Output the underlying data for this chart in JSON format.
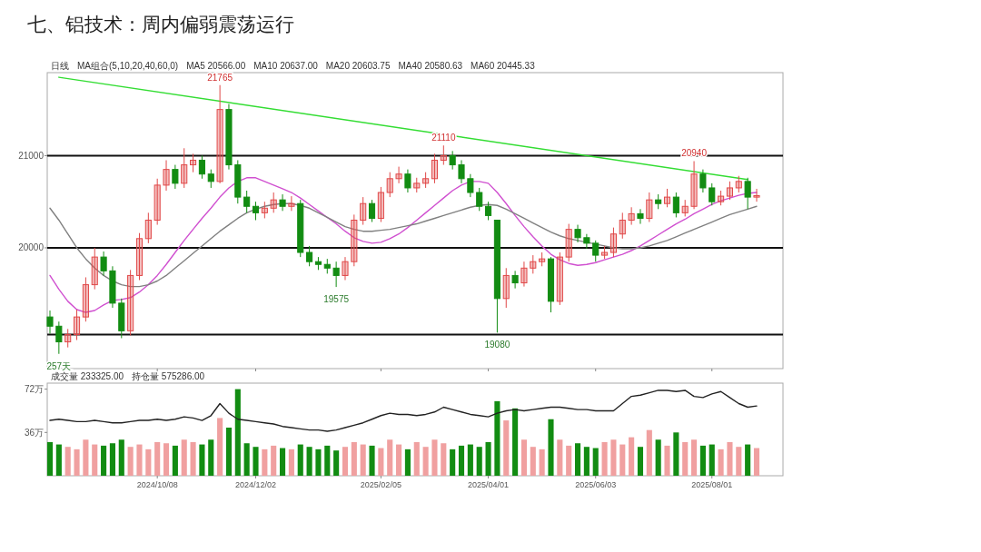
{
  "chart_data": [
    {
      "type": "candlestick",
      "title": "七、铝技术：周内偏弱震荡运行",
      "categories": [
        null,
        null,
        null,
        null,
        null,
        null,
        null,
        null,
        null,
        null,
        null,
        null,
        "2024/10/08",
        null,
        null,
        null,
        null,
        null,
        null,
        null,
        null,
        null,
        null,
        "2024/12/02",
        null,
        null,
        null,
        null,
        null,
        null,
        null,
        null,
        null,
        null,
        null,
        null,
        null,
        "2025/02/05",
        null,
        null,
        null,
        null,
        null,
        null,
        null,
        null,
        null,
        null,
        null,
        "2025/04/01",
        null,
        null,
        null,
        null,
        null,
        null,
        null,
        null,
        null,
        null,
        null,
        "2025/06/03",
        null,
        null,
        null,
        null,
        null,
        null,
        null,
        null,
        null,
        null,
        null,
        null,
        "2025/08/01",
        null,
        null,
        null,
        null,
        null
      ],
      "ohlc": [
        [
          19250,
          19320,
          19070,
          19150
        ],
        [
          19150,
          19200,
          18850,
          18980
        ],
        [
          18980,
          19120,
          18920,
          19060
        ],
        [
          19060,
          19330,
          19000,
          19250
        ],
        [
          19250,
          19680,
          19200,
          19600
        ],
        [
          19600,
          20000,
          19550,
          19900
        ],
        [
          19900,
          19960,
          19700,
          19750
        ],
        [
          19750,
          19800,
          19350,
          19400
        ],
        [
          19400,
          19450,
          19020,
          19100
        ],
        [
          19100,
          19760,
          19050,
          19700
        ],
        [
          19700,
          20160,
          19650,
          20100
        ],
        [
          20100,
          20380,
          20050,
          20300
        ],
        [
          20300,
          20750,
          20250,
          20680
        ],
        [
          20680,
          20950,
          20620,
          20850
        ],
        [
          20850,
          20900,
          20640,
          20700
        ],
        [
          20700,
          21080,
          20650,
          20900
        ],
        [
          20900,
          21020,
          20820,
          20950
        ],
        [
          20950,
          21000,
          20750,
          20800
        ],
        [
          20800,
          20850,
          20650,
          20720
        ],
        [
          20720,
          21765,
          20700,
          21500
        ],
        [
          21500,
          21560,
          20850,
          20900
        ],
        [
          20900,
          20950,
          20480,
          20550
        ],
        [
          20550,
          20620,
          20380,
          20450
        ],
        [
          20450,
          20500,
          20300,
          20380
        ],
        [
          20380,
          20500,
          20320,
          20430
        ],
        [
          20430,
          20600,
          20380,
          20520
        ],
        [
          20520,
          20580,
          20400,
          20450
        ],
        [
          20450,
          20560,
          20400,
          20480
        ],
        [
          20480,
          20520,
          19900,
          19950
        ],
        [
          19950,
          20020,
          19800,
          19850
        ],
        [
          19850,
          19900,
          19760,
          19820
        ],
        [
          19820,
          19880,
          19720,
          19780
        ],
        [
          19780,
          19850,
          19575,
          19700
        ],
        [
          19700,
          19900,
          19650,
          19850
        ],
        [
          19850,
          20360,
          19800,
          20300
        ],
        [
          20300,
          20550,
          20250,
          20480
        ],
        [
          20480,
          20520,
          20280,
          20320
        ],
        [
          20320,
          20660,
          20280,
          20600
        ],
        [
          20600,
          20820,
          20550,
          20750
        ],
        [
          20750,
          20880,
          20700,
          20800
        ],
        [
          20800,
          20850,
          20600,
          20650
        ],
        [
          20650,
          20760,
          20600,
          20700
        ],
        [
          20700,
          20820,
          20650,
          20750
        ],
        [
          20750,
          21020,
          20700,
          20950
        ],
        [
          20950,
          21110,
          20900,
          21000
        ],
        [
          21000,
          21050,
          20850,
          20900
        ],
        [
          20900,
          20950,
          20700,
          20750
        ],
        [
          20750,
          20800,
          20550,
          20600
        ],
        [
          20600,
          20650,
          20400,
          20450
        ],
        [
          20450,
          20500,
          20300,
          20350
        ],
        [
          20300,
          20300,
          19080,
          19450
        ],
        [
          19450,
          19780,
          19350,
          19700
        ],
        [
          19700,
          19750,
          19560,
          19620
        ],
        [
          19620,
          19850,
          19580,
          19780
        ],
        [
          19780,
          19920,
          19720,
          19850
        ],
        [
          19850,
          19950,
          19800,
          19880
        ],
        [
          19880,
          19900,
          19300,
          19420
        ],
        [
          19420,
          19950,
          19380,
          19900
        ],
        [
          19900,
          20260,
          19850,
          20200
        ],
        [
          20200,
          20250,
          20060,
          20110
        ],
        [
          20110,
          20150,
          19990,
          20050
        ],
        [
          20050,
          20080,
          19850,
          19920
        ],
        [
          19920,
          20020,
          19880,
          19950
        ],
        [
          19950,
          20220,
          19900,
          20150
        ],
        [
          20150,
          20380,
          20100,
          20300
        ],
        [
          20300,
          20440,
          20250,
          20370
        ],
        [
          20370,
          20420,
          20260,
          20320
        ],
        [
          20320,
          20600,
          20280,
          20520
        ],
        [
          20520,
          20580,
          20420,
          20480
        ],
        [
          20480,
          20640,
          20440,
          20550
        ],
        [
          20550,
          20600,
          20330,
          20380
        ],
        [
          20380,
          20520,
          20340,
          20450
        ],
        [
          20450,
          20940,
          20420,
          20800
        ],
        [
          20800,
          20850,
          20600,
          20650
        ],
        [
          20650,
          20700,
          20460,
          20500
        ],
        [
          20500,
          20620,
          20460,
          20560
        ],
        [
          20560,
          20720,
          20520,
          20650
        ],
        [
          20650,
          20780,
          20600,
          20720
        ],
        [
          20720,
          20760,
          20420,
          20550
        ],
        [
          20550,
          20640,
          20500,
          20566
        ]
      ],
      "colors": [
        "#128c12",
        "#128c12",
        "#e04848",
        "#e04848",
        "#e04848",
        "#e04848",
        "#128c12",
        "#128c12",
        "#128c12",
        "#e04848",
        "#e04848",
        "#e04848",
        "#e04848",
        "#e04848",
        "#128c12",
        "#e04848",
        "#e04848",
        "#128c12",
        "#128c12",
        "#e04848",
        "#128c12",
        "#128c12",
        "#128c12",
        "#128c12",
        "#e04848",
        "#e04848",
        "#128c12",
        "#e04848",
        "#128c12",
        "#128c12",
        "#128c12",
        "#128c12",
        "#128c12",
        "#e04848",
        "#e04848",
        "#e04848",
        "#128c12",
        "#e04848",
        "#e04848",
        "#e04848",
        "#128c12",
        "#e04848",
        "#e04848",
        "#e04848",
        "#e04848",
        "#128c12",
        "#128c12",
        "#128c12",
        "#128c12",
        "#128c12",
        "#128c12",
        "#e04848",
        "#128c12",
        "#e04848",
        "#e04848",
        "#e04848",
        "#128c12",
        "#e04848",
        "#e04848",
        "#128c12",
        "#128c12",
        "#128c12",
        "#e04848",
        "#e04848",
        "#e04848",
        "#e04848",
        "#128c12",
        "#e04848",
        "#128c12",
        "#e04848",
        "#128c12",
        "#e04848",
        "#e04848",
        "#128c12",
        "#128c12",
        "#e04848",
        "#e04848",
        "#e04848",
        "#128c12",
        "#e04848"
      ],
      "ylim": [
        18690,
        21900
      ],
      "yticks": [
        20000,
        21000
      ],
      "tick_labels": "y",
      "ref_lines": [
        {
          "axis": "y",
          "value": 21000,
          "color": "#111111"
        },
        {
          "axis": "y",
          "value": 20000,
          "color": "#111111"
        },
        {
          "axis": "y",
          "value": 19060,
          "color": "#111111"
        }
      ],
      "series": [
        {
          "type": "line",
          "color": "#d050d0",
          "values": [
            19700,
            19550,
            19420,
            19330,
            19300,
            19320,
            19380,
            19430,
            19440,
            19460,
            19520,
            19600,
            19700,
            19820,
            19950,
            20080,
            20200,
            20320,
            20430,
            20550,
            20650,
            20720,
            20760,
            20760,
            20720,
            20680,
            20640,
            20600,
            20540,
            20470,
            20400,
            20330,
            20260,
            20180,
            20110,
            20070,
            20050,
            20060,
            20100,
            20150,
            20220,
            20300,
            20380,
            20460,
            20540,
            20620,
            20680,
            20720,
            20720,
            20700,
            20600,
            20480,
            20350,
            20230,
            20120,
            20020,
            19930,
            19870,
            19830,
            19810,
            19820,
            19840,
            19870,
            19900,
            19930,
            19970,
            20020,
            20080,
            20140,
            20200,
            20260,
            20310,
            20370,
            20420,
            20470,
            20510,
            20540,
            20570,
            20590,
            20600
          ]
        },
        {
          "type": "line",
          "color": "#808080",
          "values": [
            20430,
            20300,
            20150,
            20000,
            19880,
            19780,
            19700,
            19640,
            19600,
            19580,
            19580,
            19600,
            19640,
            19700,
            19780,
            19860,
            19940,
            20020,
            20100,
            20180,
            20250,
            20320,
            20380,
            20420,
            20450,
            20470,
            20480,
            20480,
            20460,
            20430,
            20380,
            20330,
            20280,
            20230,
            20200,
            20180,
            20180,
            20190,
            20200,
            20220,
            20240,
            20260,
            20290,
            20320,
            20350,
            20380,
            20410,
            20440,
            20460,
            20470,
            20460,
            20420,
            20370,
            20320,
            20270,
            20220,
            20170,
            20130,
            20100,
            20080,
            20060,
            20040,
            20020,
            20000,
            19990,
            19990,
            20000,
            20020,
            20050,
            20080,
            20120,
            20160,
            20200,
            20240,
            20280,
            20320,
            20360,
            20390,
            20420,
            20450
          ]
        },
        {
          "type": "line",
          "color": "#33dd33",
          "values": [
            null,
            21850,
            null,
            null,
            null,
            null,
            null,
            null,
            null,
            null,
            null,
            null,
            null,
            null,
            null,
            null,
            null,
            null,
            null,
            null,
            null,
            null,
            null,
            null,
            null,
            null,
            null,
            null,
            null,
            null,
            null,
            null,
            null,
            null,
            null,
            null,
            null,
            null,
            null,
            null,
            null,
            null,
            null,
            null,
            null,
            null,
            null,
            null,
            null,
            null,
            null,
            null,
            null,
            null,
            null,
            null,
            null,
            null,
            null,
            null,
            null,
            null,
            null,
            null,
            null,
            null,
            null,
            null,
            null,
            null,
            null,
            null,
            null,
            null,
            null,
            null,
            null,
            null,
            20740,
            null
          ]
        }
      ],
      "annotations": [
        "日线",
        "MA组合(5,10,20,40,60,0)",
        "MA5 20566.00",
        "MA10 20637.00",
        "MA20 20603.75",
        "MA40 20580.63",
        "MA60 20445.33",
        {
          "text": "21765",
          "y": 21765
        },
        {
          "text": "21110",
          "y": 21110
        },
        {
          "text": "20940",
          "y": 20940
        },
        {
          "text": "19575",
          "y": 19575
        },
        {
          "text": "19080",
          "y": 19080
        },
        {
          "text": "257天",
          "y": 18850
        }
      ]
    },
    {
      "type": "bar",
      "categories": [
        null,
        null,
        null,
        null,
        null,
        null,
        null,
        null,
        null,
        null,
        null,
        null,
        "2024/10/08",
        null,
        null,
        null,
        null,
        null,
        null,
        null,
        null,
        null,
        null,
        "2024/12/02",
        null,
        null,
        null,
        null,
        null,
        null,
        null,
        null,
        null,
        null,
        null,
        null,
        null,
        "2025/02/05",
        null,
        null,
        null,
        null,
        null,
        null,
        null,
        null,
        null,
        null,
        null,
        "2025/04/01",
        null,
        null,
        null,
        null,
        null,
        null,
        null,
        null,
        null,
        null,
        null,
        "2025/06/03",
        null,
        null,
        null,
        null,
        null,
        null,
        null,
        null,
        null,
        null,
        null,
        null,
        "2025/08/01",
        null,
        null,
        null,
        null,
        null
      ],
      "ylim": [
        0,
        77
      ],
      "yticks": [
        {
          "value": 72,
          "label": "72万"
        },
        {
          "value": 36,
          "label": "36万"
        }
      ],
      "series": [
        {
          "type": "bar",
          "values": [
            28,
            26,
            24,
            22,
            30,
            26,
            25,
            27,
            30,
            24,
            26,
            22,
            28,
            27,
            25,
            30,
            28,
            26,
            30,
            48,
            40,
            72,
            27,
            24,
            22,
            25,
            23,
            22,
            26,
            24,
            22,
            25,
            21,
            24,
            28,
            26,
            25,
            23,
            30,
            26,
            22,
            28,
            24,
            30,
            27,
            22,
            25,
            26,
            24,
            28,
            62,
            46,
            56,
            30,
            24,
            22,
            47,
            30,
            25,
            27,
            24,
            23,
            28,
            30,
            26,
            32,
            24,
            38,
            30,
            25,
            36,
            28,
            30,
            25,
            26,
            22,
            28,
            24,
            26,
            23
          ],
          "colors": [
            "#128c12",
            "#128c12",
            "#f0a0a0",
            "#f0a0a0",
            "#f0a0a0",
            "#f0a0a0",
            "#128c12",
            "#128c12",
            "#128c12",
            "#f0a0a0",
            "#f0a0a0",
            "#f0a0a0",
            "#f0a0a0",
            "#f0a0a0",
            "#128c12",
            "#f0a0a0",
            "#f0a0a0",
            "#128c12",
            "#128c12",
            "#f0a0a0",
            "#128c12",
            "#128c12",
            "#128c12",
            "#128c12",
            "#f0a0a0",
            "#f0a0a0",
            "#128c12",
            "#f0a0a0",
            "#128c12",
            "#128c12",
            "#128c12",
            "#128c12",
            "#128c12",
            "#f0a0a0",
            "#f0a0a0",
            "#f0a0a0",
            "#128c12",
            "#f0a0a0",
            "#f0a0a0",
            "#f0a0a0",
            "#128c12",
            "#f0a0a0",
            "#f0a0a0",
            "#f0a0a0",
            "#f0a0a0",
            "#128c12",
            "#128c12",
            "#128c12",
            "#128c12",
            "#128c12",
            "#128c12",
            "#f0a0a0",
            "#128c12",
            "#f0a0a0",
            "#f0a0a0",
            "#f0a0a0",
            "#128c12",
            "#f0a0a0",
            "#f0a0a0",
            "#128c12",
            "#128c12",
            "#128c12",
            "#f0a0a0",
            "#f0a0a0",
            "#f0a0a0",
            "#f0a0a0",
            "#128c12",
            "#f0a0a0",
            "#128c12",
            "#f0a0a0",
            "#128c12",
            "#f0a0a0",
            "#f0a0a0",
            "#128c12",
            "#128c12",
            "#f0a0a0",
            "#f0a0a0",
            "#f0a0a0",
            "#128c12",
            "#f0a0a0"
          ]
        },
        {
          "type": "line",
          "color": "#222222",
          "values": [
            46,
            47,
            46,
            45,
            45,
            46,
            45,
            44,
            44,
            45,
            46,
            46,
            47,
            46,
            47,
            49,
            48,
            46,
            50,
            60,
            52,
            47,
            46,
            45,
            44,
            43,
            41,
            40,
            39,
            38,
            38,
            37,
            38,
            40,
            42,
            44,
            47,
            50,
            52,
            51,
            51,
            50,
            51,
            53,
            57,
            55,
            53,
            51,
            50,
            49,
            52,
            54,
            55,
            54,
            55,
            56,
            57,
            57,
            56,
            55,
            55,
            54,
            54,
            54,
            60,
            66,
            67,
            69,
            71,
            71,
            70,
            71,
            66,
            65,
            68,
            70,
            65,
            60,
            57,
            58
          ]
        }
      ],
      "annotations": [
        "成交量 233325.00",
        "持仓量 575286.00"
      ]
    }
  ]
}
